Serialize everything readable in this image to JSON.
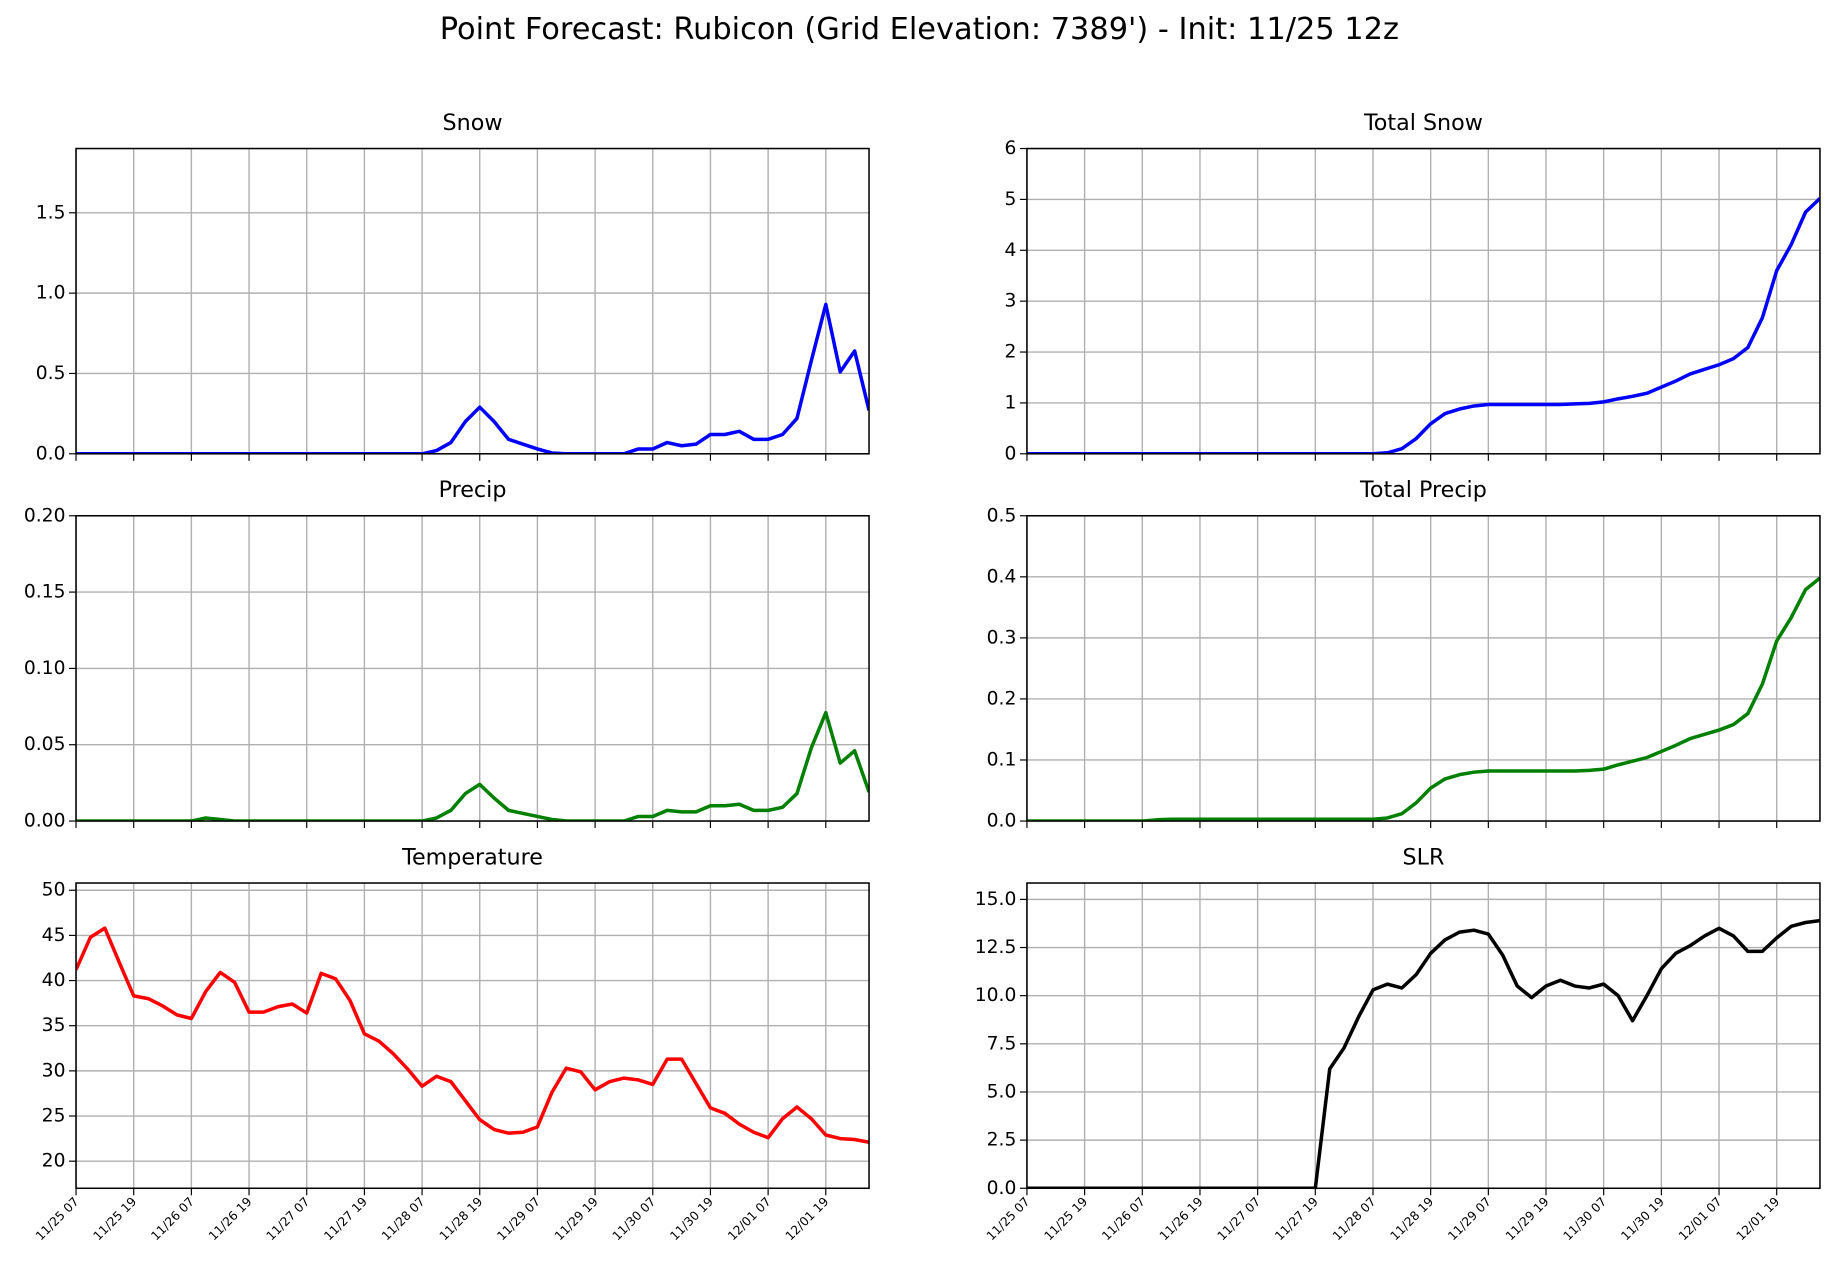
{
  "title": "Point Forecast: Rubicon (Grid Elevation: 7389') - Init: 11/25 12z",
  "chart_data": [
    {
      "type": "line",
      "title": "Snow",
      "color": "#0000ff",
      "grid": true,
      "show_xtick_labels": false,
      "x": [
        "11/25 07",
        "11/25 10",
        "11/25 13",
        "11/25 16",
        "11/25 19",
        "11/25 22",
        "11/26 01",
        "11/26 04",
        "11/26 07",
        "11/26 10",
        "11/26 13",
        "11/26 16",
        "11/26 19",
        "11/26 22",
        "11/27 01",
        "11/27 04",
        "11/27 07",
        "11/27 10",
        "11/27 13",
        "11/27 16",
        "11/27 19",
        "11/27 22",
        "11/28 01",
        "11/28 04",
        "11/28 07",
        "11/28 10",
        "11/28 13",
        "11/28 16",
        "11/28 19",
        "11/28 22",
        "11/29 01",
        "11/29 04",
        "11/29 07",
        "11/29 10",
        "11/29 13",
        "11/29 16",
        "11/29 19",
        "11/29 22",
        "11/30 01",
        "11/30 04",
        "11/30 07",
        "11/30 10",
        "11/30 13",
        "11/30 16",
        "11/30 19",
        "11/30 22",
        "12/01 01",
        "12/01 04",
        "12/01 07",
        "12/01 10",
        "12/01 13",
        "12/01 16",
        "12/01 19",
        "12/01 22",
        "12/02 01",
        "12/02 04"
      ],
      "values": [
        0,
        0,
        0,
        0,
        0,
        0,
        0,
        0,
        0,
        0,
        0,
        0,
        0,
        0,
        0,
        0,
        0,
        0,
        0,
        0,
        0,
        0,
        0,
        0,
        0,
        0.02,
        0.07,
        0.2,
        0.29,
        0.2,
        0.09,
        0.06,
        0.03,
        0.005,
        0,
        0,
        0,
        0,
        0,
        0.03,
        0.03,
        0.07,
        0.05,
        0.06,
        0.12,
        0.12,
        0.14,
        0.09,
        0.09,
        0.12,
        0.22,
        0.58,
        0.93,
        0.51,
        0.64,
        0.27
      ],
      "xlim": [
        "11/25 07",
        "12/02 04"
      ],
      "xticks": [
        "11/25 07",
        "11/25 19",
        "11/26 07",
        "11/26 19",
        "11/27 07",
        "11/27 19",
        "11/28 07",
        "11/28 19",
        "11/29 07",
        "11/29 19",
        "11/30 07",
        "11/30 19",
        "12/01 07",
        "12/01 19"
      ],
      "ylim": [
        0,
        1.9
      ],
      "yticks": [
        {
          "value": 0,
          "label": "0.0"
        },
        0.5,
        {
          "value": 1,
          "label": "1.0"
        },
        1.5
      ]
    },
    {
      "type": "line",
      "title": "Total Snow",
      "color": "#0000ff",
      "grid": true,
      "show_xtick_labels": false,
      "x": [
        "11/25 07",
        "11/25 10",
        "11/25 13",
        "11/25 16",
        "11/25 19",
        "11/25 22",
        "11/26 01",
        "11/26 04",
        "11/26 07",
        "11/26 10",
        "11/26 13",
        "11/26 16",
        "11/26 19",
        "11/26 22",
        "11/27 01",
        "11/27 04",
        "11/27 07",
        "11/27 10",
        "11/27 13",
        "11/27 16",
        "11/27 19",
        "11/27 22",
        "11/28 01",
        "11/28 04",
        "11/28 07",
        "11/28 10",
        "11/28 13",
        "11/28 16",
        "11/28 19",
        "11/28 22",
        "11/29 01",
        "11/29 04",
        "11/29 07",
        "11/29 10",
        "11/29 13",
        "11/29 16",
        "11/29 19",
        "11/29 22",
        "11/30 01",
        "11/30 04",
        "11/30 07",
        "11/30 10",
        "11/30 13",
        "11/30 16",
        "11/30 19",
        "11/30 22",
        "12/01 01",
        "12/01 04",
        "12/01 07",
        "12/01 10",
        "12/01 13",
        "12/01 16",
        "12/01 19",
        "12/01 22",
        "12/02 01",
        "12/02 04"
      ],
      "values": [
        0,
        0,
        0,
        0,
        0,
        0,
        0,
        0,
        0,
        0,
        0,
        0,
        0,
        0,
        0,
        0,
        0,
        0,
        0,
        0,
        0,
        0,
        0,
        0,
        0,
        0.02,
        0.1,
        0.3,
        0.59,
        0.79,
        0.88,
        0.94,
        0.97,
        0.97,
        0.97,
        0.97,
        0.97,
        0.97,
        0.98,
        0.99,
        1.02,
        1.08,
        1.13,
        1.19,
        1.31,
        1.43,
        1.57,
        1.66,
        1.75,
        1.87,
        2.09,
        2.67,
        3.6,
        4.11,
        4.75,
        5.02
      ],
      "xlim": [
        "11/25 07",
        "12/02 04"
      ],
      "xticks": [
        "11/25 07",
        "11/25 19",
        "11/26 07",
        "11/26 19",
        "11/27 07",
        "11/27 19",
        "11/28 07",
        "11/28 19",
        "11/29 07",
        "11/29 19",
        "11/30 07",
        "11/30 19",
        "12/01 07",
        "12/01 19"
      ],
      "ylim": [
        0,
        6
      ],
      "yticks": [
        0,
        1,
        2,
        3,
        4,
        5,
        6
      ]
    },
    {
      "type": "line",
      "title": "Precip",
      "color": "#008000",
      "grid": true,
      "show_xtick_labels": false,
      "x": [
        "11/25 07",
        "11/25 10",
        "11/25 13",
        "11/25 16",
        "11/25 19",
        "11/25 22",
        "11/26 01",
        "11/26 04",
        "11/26 07",
        "11/26 10",
        "11/26 13",
        "11/26 16",
        "11/26 19",
        "11/26 22",
        "11/27 01",
        "11/27 04",
        "11/27 07",
        "11/27 10",
        "11/27 13",
        "11/27 16",
        "11/27 19",
        "11/27 22",
        "11/28 01",
        "11/28 04",
        "11/28 07",
        "11/28 10",
        "11/28 13",
        "11/28 16",
        "11/28 19",
        "11/28 22",
        "11/29 01",
        "11/29 04",
        "11/29 07",
        "11/29 10",
        "11/29 13",
        "11/29 16",
        "11/29 19",
        "11/29 22",
        "11/30 01",
        "11/30 04",
        "11/30 07",
        "11/30 10",
        "11/30 13",
        "11/30 16",
        "11/30 19",
        "11/30 22",
        "12/01 01",
        "12/01 04",
        "12/01 07",
        "12/01 10",
        "12/01 13",
        "12/01 16",
        "12/01 19",
        "12/01 22",
        "12/02 01",
        "12/02 04"
      ],
      "values": [
        0,
        0,
        0,
        0,
        0,
        0,
        0,
        0,
        0,
        0.002,
        0.001,
        0,
        0,
        0,
        0,
        0,
        0,
        0,
        0,
        0,
        0,
        0,
        0,
        0,
        0,
        0.002,
        0.007,
        0.018,
        0.024,
        0.015,
        0.007,
        0.005,
        0.003,
        0.001,
        0,
        0,
        0,
        0,
        0,
        0.003,
        0.003,
        0.007,
        0.006,
        0.006,
        0.01,
        0.01,
        0.011,
        0.007,
        0.007,
        0.009,
        0.018,
        0.048,
        0.071,
        0.038,
        0.046,
        0.019
      ],
      "xlim": [
        "11/25 07",
        "12/02 04"
      ],
      "xticks": [
        "11/25 07",
        "11/25 19",
        "11/26 07",
        "11/26 19",
        "11/27 07",
        "11/27 19",
        "11/28 07",
        "11/28 19",
        "11/29 07",
        "11/29 19",
        "11/30 07",
        "11/30 19",
        "12/01 07",
        "12/01 19"
      ],
      "ylim": [
        0,
        0.2
      ],
      "yticks": [
        {
          "value": 0,
          "label": "0.00"
        },
        0.05,
        {
          "value": 0.1,
          "label": "0.10"
        },
        0.15,
        {
          "value": 0.2,
          "label": "0.20"
        }
      ]
    },
    {
      "type": "line",
      "title": "Total Precip",
      "color": "#008000",
      "grid": true,
      "show_xtick_labels": false,
      "x": [
        "11/25 07",
        "11/25 10",
        "11/25 13",
        "11/25 16",
        "11/25 19",
        "11/25 22",
        "11/26 01",
        "11/26 04",
        "11/26 07",
        "11/26 10",
        "11/26 13",
        "11/26 16",
        "11/26 19",
        "11/26 22",
        "11/27 01",
        "11/27 04",
        "11/27 07",
        "11/27 10",
        "11/27 13",
        "11/27 16",
        "11/27 19",
        "11/27 22",
        "11/28 01",
        "11/28 04",
        "11/28 07",
        "11/28 10",
        "11/28 13",
        "11/28 16",
        "11/28 19",
        "11/28 22",
        "11/29 01",
        "11/29 04",
        "11/29 07",
        "11/29 10",
        "11/29 13",
        "11/29 16",
        "11/29 19",
        "11/29 22",
        "11/30 01",
        "11/30 04",
        "11/30 07",
        "11/30 10",
        "11/30 13",
        "11/30 16",
        "11/30 19",
        "11/30 22",
        "12/01 01",
        "12/01 04",
        "12/01 07",
        "12/01 10",
        "12/01 13",
        "12/01 16",
        "12/01 19",
        "12/01 22",
        "12/02 01",
        "12/02 04"
      ],
      "values": [
        0,
        0,
        0,
        0,
        0,
        0,
        0,
        0,
        0,
        0.002,
        0.003,
        0.003,
        0.003,
        0.003,
        0.003,
        0.003,
        0.003,
        0.003,
        0.003,
        0.003,
        0.003,
        0.003,
        0.003,
        0.003,
        0.003,
        0.005,
        0.012,
        0.03,
        0.054,
        0.069,
        0.076,
        0.08,
        0.082,
        0.082,
        0.082,
        0.082,
        0.082,
        0.082,
        0.082,
        0.083,
        0.085,
        0.092,
        0.098,
        0.104,
        0.114,
        0.124,
        0.135,
        0.142,
        0.149,
        0.158,
        0.176,
        0.224,
        0.295,
        0.333,
        0.379,
        0.398
      ],
      "xlim": [
        "11/25 07",
        "12/02 04"
      ],
      "xticks": [
        "11/25 07",
        "11/25 19",
        "11/26 07",
        "11/26 19",
        "11/27 07",
        "11/27 19",
        "11/28 07",
        "11/28 19",
        "11/29 07",
        "11/29 19",
        "11/30 07",
        "11/30 19",
        "12/01 07",
        "12/01 19"
      ],
      "ylim": [
        0,
        0.5
      ],
      "yticks": [
        {
          "value": 0,
          "label": "0.0"
        },
        0.1,
        0.2,
        0.3,
        0.4,
        0.5
      ]
    },
    {
      "type": "line",
      "title": "Temperature",
      "color": "#ff0000",
      "grid": true,
      "show_xtick_labels": true,
      "x": [
        "11/25 07",
        "11/25 10",
        "11/25 13",
        "11/25 16",
        "11/25 19",
        "11/25 22",
        "11/26 01",
        "11/26 04",
        "11/26 07",
        "11/26 10",
        "11/26 13",
        "11/26 16",
        "11/26 19",
        "11/26 22",
        "11/27 01",
        "11/27 04",
        "11/27 07",
        "11/27 10",
        "11/27 13",
        "11/27 16",
        "11/27 19",
        "11/27 22",
        "11/28 01",
        "11/28 04",
        "11/28 07",
        "11/28 10",
        "11/28 13",
        "11/28 16",
        "11/28 19",
        "11/28 22",
        "11/29 01",
        "11/29 04",
        "11/29 07",
        "11/29 10",
        "11/29 13",
        "11/29 16",
        "11/29 19",
        "11/29 22",
        "11/30 01",
        "11/30 04",
        "11/30 07",
        "11/30 10",
        "11/30 13",
        "11/30 16",
        "11/30 19",
        "11/30 22",
        "12/01 01",
        "12/01 04",
        "12/01 07",
        "12/01 10",
        "12/01 13",
        "12/01 16",
        "12/01 19",
        "12/01 22",
        "12/02 01",
        "12/02 04"
      ],
      "values": [
        41.2,
        44.8,
        45.8,
        42,
        38.3,
        38,
        37.2,
        36.2,
        35.8,
        38.8,
        40.9,
        39.8,
        36.5,
        36.5,
        37.1,
        37.4,
        36.4,
        40.8,
        40.2,
        37.8,
        34.1,
        33.3,
        31.9,
        30.2,
        28.3,
        29.4,
        28.8,
        26.7,
        24.6,
        23.5,
        23.1,
        23.2,
        23.8,
        27.6,
        30.3,
        29.9,
        27.9,
        28.8,
        29.2,
        29,
        28.5,
        31.3,
        31.3,
        28.6,
        25.9,
        25.3,
        24.1,
        23.2,
        22.6,
        24.7,
        26,
        24.7,
        22.9,
        22.5,
        22.4,
        22.1
      ],
      "xlim": [
        "11/25 07",
        "12/02 04"
      ],
      "xticks": [
        "11/25 07",
        "11/25 19",
        "11/26 07",
        "11/26 19",
        "11/27 07",
        "11/27 19",
        "11/28 07",
        "11/28 19",
        "11/29 07",
        "11/29 19",
        "11/30 07",
        "11/30 19",
        "12/01 07",
        "12/01 19"
      ],
      "ylim": [
        17,
        50.8
      ],
      "yticks": [
        20,
        25,
        30,
        35,
        40,
        45,
        50
      ]
    },
    {
      "type": "line",
      "title": "SLR",
      "color": "#000000",
      "grid": true,
      "show_xtick_labels": true,
      "x": [
        "11/25 07",
        "11/25 10",
        "11/25 13",
        "11/25 16",
        "11/25 19",
        "11/25 22",
        "11/26 01",
        "11/26 04",
        "11/26 07",
        "11/26 10",
        "11/26 13",
        "11/26 16",
        "11/26 19",
        "11/26 22",
        "11/27 01",
        "11/27 04",
        "11/27 07",
        "11/27 10",
        "11/27 13",
        "11/27 16",
        "11/27 19",
        "11/27 22",
        "11/28 01",
        "11/28 04",
        "11/28 07",
        "11/28 10",
        "11/28 13",
        "11/28 16",
        "11/28 19",
        "11/28 22",
        "11/29 01",
        "11/29 04",
        "11/29 07",
        "11/29 10",
        "11/29 13",
        "11/29 16",
        "11/29 19",
        "11/29 22",
        "11/30 01",
        "11/30 04",
        "11/30 07",
        "11/30 10",
        "11/30 13",
        "11/30 16",
        "11/30 19",
        "11/30 22",
        "12/01 01",
        "12/01 04",
        "12/01 07",
        "12/01 10",
        "12/01 13",
        "12/01 16",
        "12/01 19",
        "12/01 22",
        "12/02 01",
        "12/02 04"
      ],
      "values": [
        0,
        0,
        0,
        0,
        0,
        0,
        0,
        0,
        0,
        0,
        0,
        0,
        0,
        0,
        0,
        0,
        0,
        0,
        0,
        0,
        0,
        6.2,
        7.3,
        8.9,
        10.3,
        10.6,
        10.4,
        11.1,
        12.2,
        12.9,
        13.3,
        13.4,
        13.2,
        12.1,
        10.5,
        9.9,
        10.5,
        10.8,
        10.5,
        10.4,
        10.6,
        10,
        8.7,
        10,
        11.4,
        12.2,
        12.6,
        13.1,
        13.5,
        13.1,
        12.3,
        12.3,
        13,
        13.6,
        13.8,
        13.9
      ],
      "xlim": [
        "11/25 07",
        "12/02 04"
      ],
      "xticks": [
        "11/25 07",
        "11/25 19",
        "11/26 07",
        "11/26 19",
        "11/27 07",
        "11/27 19",
        "11/28 07",
        "11/28 19",
        "11/29 07",
        "11/29 19",
        "11/30 07",
        "11/30 19",
        "12/01 07",
        "12/01 19"
      ],
      "ylim": [
        0,
        15.85
      ],
      "yticks": [
        {
          "value": 0,
          "label": "0.0"
        },
        2.5,
        {
          "value": 5,
          "label": "5.0"
        },
        7.5,
        {
          "value": 10,
          "label": "10.0"
        },
        12.5,
        {
          "value": 15,
          "label": "15.0"
        }
      ]
    }
  ]
}
